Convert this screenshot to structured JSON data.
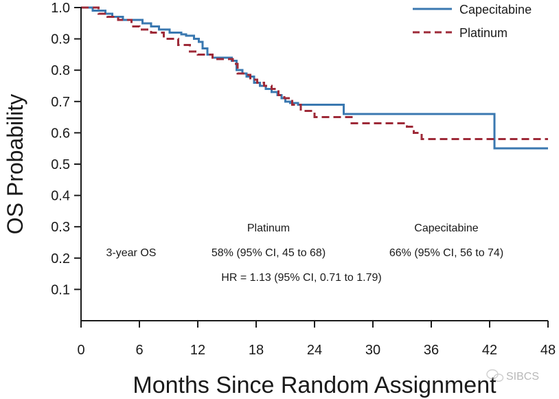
{
  "chart_data": {
    "type": "line",
    "subtype": "kaplan-meier-step",
    "xlabel": "Months Since Random Assignment",
    "ylabel": "OS Probability",
    "xlim": [
      0,
      48
    ],
    "ylim": [
      0,
      1.0
    ],
    "xticks": [
      0,
      6,
      12,
      18,
      24,
      30,
      36,
      42,
      48
    ],
    "xtick_labels": [
      "0",
      "6",
      "12",
      "18",
      "24",
      "30",
      "36",
      "42",
      "48"
    ],
    "yticks": [
      0.1,
      0.2,
      0.3,
      0.4,
      0.5,
      0.6,
      0.7,
      0.8,
      0.9,
      1.0
    ],
    "ytick_labels": [
      "0.1",
      "0.2",
      "0.3",
      "0.4",
      "0.5",
      "0.6",
      "0.7",
      "0.8",
      "0.9",
      "1.0"
    ],
    "grid": false,
    "legend_position": "top-right",
    "series": [
      {
        "name": "Capecitabine",
        "color": "#3a78b0",
        "dash": "solid",
        "x": [
          0,
          1.2,
          2.5,
          3.2,
          4.3,
          5.5,
          6.3,
          7.2,
          8,
          9.1,
          10.3,
          10.8,
          11.6,
          12.1,
          12.5,
          13,
          13.5,
          15.5,
          16,
          16.6,
          17,
          17.8,
          18.4,
          19,
          19.6,
          20.2,
          20.6,
          21,
          21.5,
          22.3,
          23.1,
          27,
          30,
          36,
          42.5,
          48
        ],
        "y": [
          1.0,
          0.99,
          0.98,
          0.97,
          0.96,
          0.96,
          0.95,
          0.94,
          0.93,
          0.92,
          0.915,
          0.91,
          0.9,
          0.89,
          0.87,
          0.85,
          0.84,
          0.83,
          0.8,
          0.79,
          0.78,
          0.76,
          0.75,
          0.74,
          0.73,
          0.72,
          0.71,
          0.7,
          0.695,
          0.69,
          0.69,
          0.66,
          0.66,
          0.66,
          0.55,
          0.55
        ]
      },
      {
        "name": "Platinum",
        "color": "#9e2a38",
        "dash": "dashed",
        "x": [
          0,
          1.8,
          2.7,
          3.8,
          5.2,
          6,
          7.2,
          8.5,
          10,
          11.2,
          12,
          13.5,
          15.6,
          16.1,
          16.7,
          17.4,
          18.1,
          18.8,
          19.6,
          20.3,
          20.9,
          21.7,
          22.6,
          24,
          27.8,
          33.5,
          34.2,
          35,
          48
        ],
        "y": [
          1.0,
          0.98,
          0.97,
          0.96,
          0.94,
          0.93,
          0.92,
          0.9,
          0.88,
          0.86,
          0.85,
          0.835,
          0.82,
          0.79,
          0.785,
          0.77,
          0.76,
          0.75,
          0.74,
          0.72,
          0.71,
          0.69,
          0.67,
          0.65,
          0.63,
          0.62,
          0.6,
          0.58,
          0.58
        ]
      }
    ],
    "annotations": {
      "header_platinum": "Platinum",
      "header_capecitabine": "Capecitabine",
      "row_label": "3-year OS",
      "platinum_os": "58% (95% CI, 45 to 68)",
      "capecitabine_os": "66% (95% CI, 56 to 74)",
      "hazard_ratio": "HR = 1.13 (95% CI, 0.71 to 1.79)"
    }
  },
  "watermark": {
    "text": "SIBCS",
    "icon": "wechat-logo-icon"
  }
}
